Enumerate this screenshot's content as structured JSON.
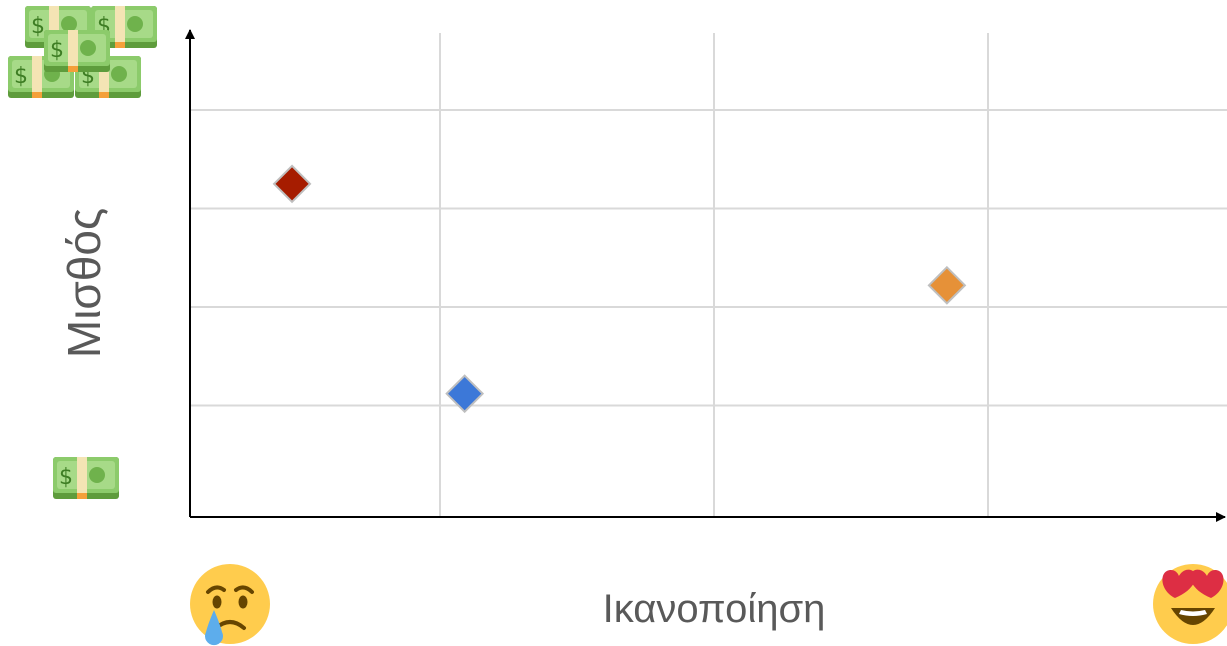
{
  "chart_data": {
    "type": "scatter",
    "title": "",
    "xlabel": "Ικανοποίηση",
    "ylabel": "Μισθός",
    "xlim": [
      0,
      4
    ],
    "ylim": [
      0,
      4
    ],
    "grid": true,
    "legend": "none",
    "points": [
      {
        "x": 0.46,
        "y": 3.25,
        "color": "#A61C00",
        "marker": "diamond"
      },
      {
        "x": 1.09,
        "y": 1.12,
        "color": "#3C78D8",
        "marker": "diamond"
      },
      {
        "x": 2.85,
        "y": 2.22,
        "color": "#E69138",
        "marker": "diamond"
      }
    ]
  },
  "decorations": {
    "y_high_icon": "money-stack-icon",
    "y_low_icon": "banknote-icon",
    "x_low_icon": "crying-face-icon",
    "x_high_icon": "heart-eyes-face-icon"
  },
  "colors": {
    "grid": "#D9D9D9",
    "axis": "#000000",
    "label": "#595959"
  }
}
